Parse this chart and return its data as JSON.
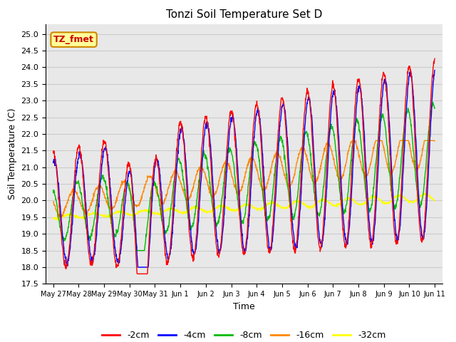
{
  "title": "Tonzi Soil Temperature Set D",
  "xlabel": "Time",
  "ylabel": "Soil Temperature (C)",
  "ylim": [
    17.5,
    25.3
  ],
  "tick_labels": [
    "May 27",
    "May 28",
    "May 29",
    "May 30",
    "May 31",
    "Jun 1",
    "Jun 2",
    "Jun 3",
    "Jun 4",
    "Jun 5",
    "Jun 6",
    "Jun 7",
    "Jun 8",
    "Jun 9",
    "Jun 10",
    "Jun 11"
  ],
  "legend_labels": [
    "-2cm",
    "-4cm",
    "-8cm",
    "-16cm",
    "-32cm"
  ],
  "line_colors": [
    "#ff0000",
    "#0000ff",
    "#00bb00",
    "#ff8800",
    "#ffff00"
  ],
  "annotation_text": "TZ_fmet",
  "annotation_bg": "#ffff99",
  "annotation_border": "#cc8800",
  "grid_color": "#cccccc",
  "plot_bg": "#e8e8e8",
  "yticks": [
    17.5,
    18.0,
    18.5,
    19.0,
    19.5,
    20.0,
    20.5,
    21.0,
    21.5,
    22.0,
    22.5,
    23.0,
    23.5,
    24.0,
    24.5,
    25.0
  ]
}
